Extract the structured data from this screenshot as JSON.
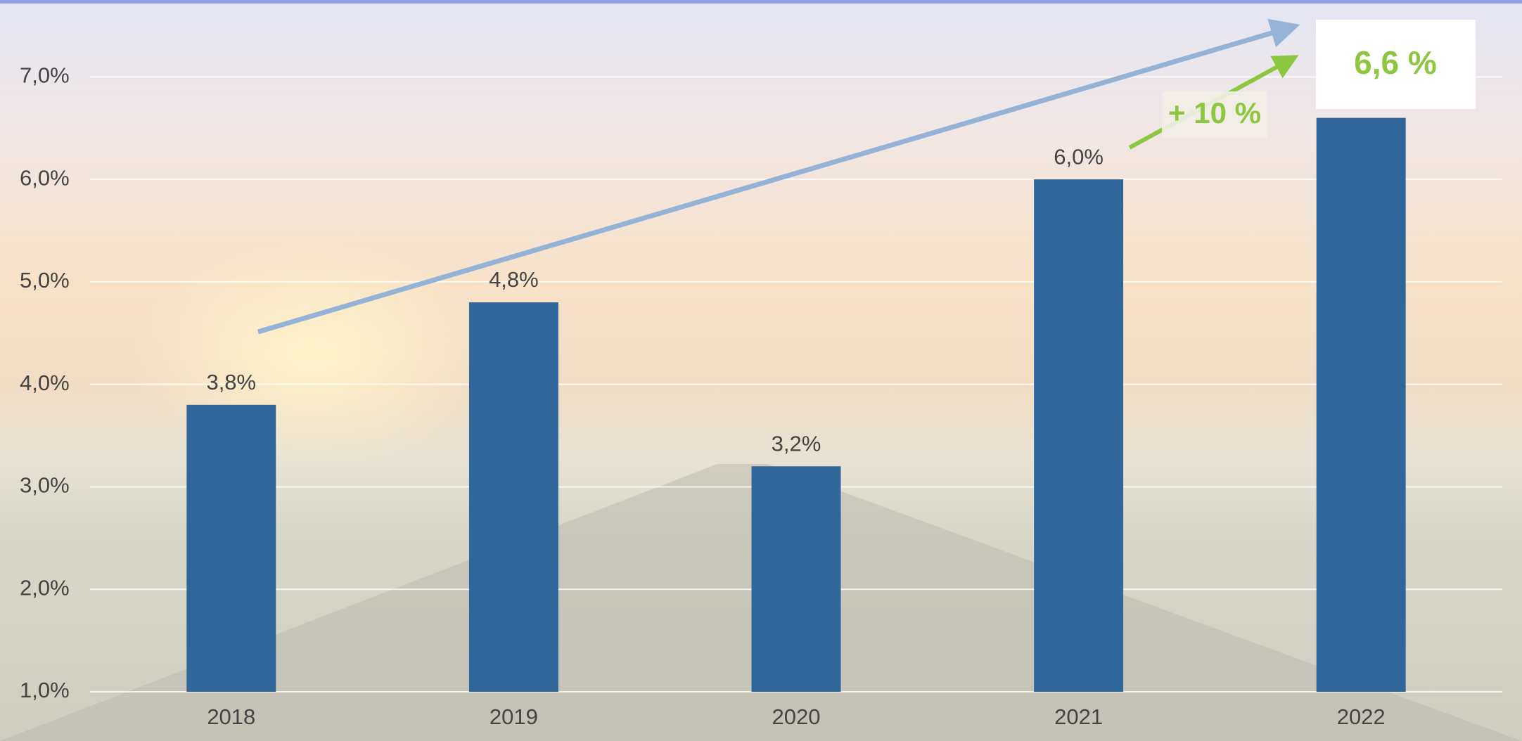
{
  "chart_data": {
    "type": "bar",
    "categories": [
      "2018",
      "2019",
      "2020",
      "2021",
      "2022"
    ],
    "values": [
      3.8,
      4.8,
      3.2,
      6.0,
      6.6
    ],
    "value_labels": [
      "3,8%",
      "4,8%",
      "3,2%",
      "6,0%",
      "6,6 %"
    ],
    "color": "#306699",
    "ylim": [
      1,
      7.75
    ],
    "yticks": [
      {
        "value": 1,
        "label": "1,0%"
      },
      {
        "value": 2,
        "label": "2,0%"
      },
      {
        "value": 3,
        "label": "3,0%"
      },
      {
        "value": 4,
        "label": "4,0%"
      },
      {
        "value": 5,
        "label": "5,0%"
      },
      {
        "value": 6,
        "label": "6,0%"
      },
      {
        "value": 7,
        "label": "7,0%"
      }
    ],
    "grid": true,
    "annotation": "+ 10 %"
  }
}
